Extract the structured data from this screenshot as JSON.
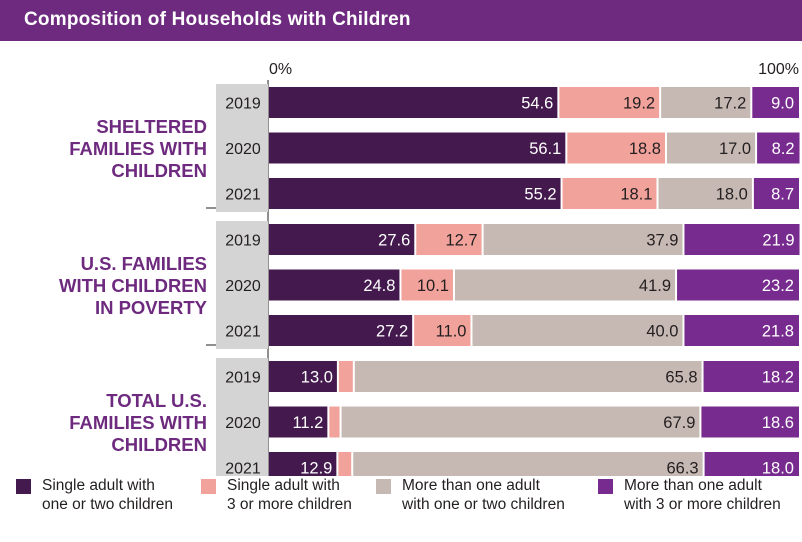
{
  "title": "Composition of Households with Children",
  "chart_data": {
    "type": "bar",
    "orientation": "horizontal",
    "stacked": true,
    "percent_stacked": true,
    "axis_labels": {
      "left": "0%",
      "right": "100%"
    },
    "groups": [
      {
        "label": [
          "SHELTERED",
          "FAMILIES WITH",
          "CHILDREN"
        ],
        "rows": [
          {
            "year": "2019",
            "values": [
              54.6,
              19.2,
              17.2,
              9.0
            ]
          },
          {
            "year": "2020",
            "values": [
              56.1,
              18.8,
              17.0,
              8.2
            ]
          },
          {
            "year": "2021",
            "values": [
              55.2,
              18.1,
              18.0,
              8.7
            ]
          }
        ]
      },
      {
        "label": [
          "U.S. FAMILIES",
          "WITH CHILDREN",
          "IN POVERTY"
        ],
        "rows": [
          {
            "year": "2019",
            "values": [
              27.6,
              12.7,
              37.9,
              21.9
            ]
          },
          {
            "year": "2020",
            "values": [
              24.8,
              10.1,
              41.9,
              23.2
            ]
          },
          {
            "year": "2021",
            "values": [
              27.2,
              11.0,
              40.0,
              21.8
            ]
          }
        ]
      },
      {
        "label": [
          "TOTAL U.S.",
          "FAMILIES WITH",
          "CHILDREN"
        ],
        "rows": [
          {
            "year": "2019",
            "values": [
              13.0,
              3.0,
              65.8,
              18.2
            ]
          },
          {
            "year": "2020",
            "values": [
              11.2,
              2.3,
              67.9,
              18.6
            ]
          },
          {
            "year": "2021",
            "values": [
              12.9,
              2.8,
              66.3,
              18.0
            ]
          }
        ]
      }
    ],
    "series": [
      {
        "name": "Single adult with one or two children",
        "lines": [
          "Single adult with",
          "one or two children"
        ],
        "color": "#441a4e"
      },
      {
        "name": "Single adult with 3 or more children",
        "lines": [
          "Single adult with",
          "3 or more children"
        ],
        "color": "#f0a29b"
      },
      {
        "name": "More than one adult with one or two children",
        "lines": [
          "More than one adult",
          "with one or two children"
        ],
        "color": "#c6b9b4"
      },
      {
        "name": "More than one adult with 3 or more children",
        "lines": [
          "More than one adult",
          "with 3 or more children"
        ],
        "color": "#782b8f"
      }
    ],
    "label_colors": [
      "#ffffff",
      "#231f20",
      "#231f20",
      "#ffffff"
    ],
    "group_label_color": "#6d2a7e",
    "year_box_color": "#d4d4d4"
  }
}
